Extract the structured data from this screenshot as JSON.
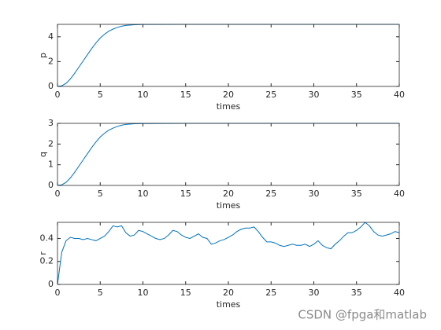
{
  "chart_data": [
    {
      "type": "line",
      "ylabel": "p",
      "xlabel": "times",
      "x": [
        0,
        0.5,
        1,
        1.5,
        2,
        2.5,
        3,
        3.5,
        4,
        4.5,
        5,
        5.5,
        6,
        6.5,
        7,
        7.5,
        8,
        9,
        10,
        15,
        20,
        25,
        30,
        35,
        40
      ],
      "series": [
        {
          "color": "#0072bd",
          "values": [
            0,
            0.05,
            0.25,
            0.6,
            1.05,
            1.55,
            2.05,
            2.55,
            3.05,
            3.5,
            3.9,
            4.2,
            4.45,
            4.62,
            4.75,
            4.85,
            4.91,
            4.97,
            4.99,
            5,
            5,
            5,
            5,
            5,
            5
          ]
        }
      ],
      "xlim": [
        0,
        40
      ],
      "xticks": [
        0,
        5,
        10,
        15,
        20,
        25,
        30,
        35,
        40
      ],
      "ylim": [
        0,
        5
      ],
      "yticks": [
        0,
        2,
        4
      ]
    },
    {
      "type": "line",
      "ylabel": "q",
      "xlabel": "times",
      "x": [
        0,
        0.5,
        1,
        1.5,
        2,
        2.5,
        3,
        3.5,
        4,
        4.5,
        5,
        5.5,
        6,
        6.5,
        7,
        7.5,
        8,
        9,
        10,
        15,
        20,
        25,
        30,
        35,
        40
      ],
      "series": [
        {
          "color": "#0072bd",
          "values": [
            0,
            0.03,
            0.15,
            0.36,
            0.63,
            0.93,
            1.23,
            1.53,
            1.83,
            2.1,
            2.34,
            2.52,
            2.67,
            2.77,
            2.85,
            2.91,
            2.95,
            2.98,
            2.99,
            3,
            3,
            3,
            3,
            3,
            3
          ]
        }
      ],
      "xlim": [
        0,
        40
      ],
      "xticks": [
        0,
        5,
        10,
        15,
        20,
        25,
        30,
        35,
        40
      ],
      "ylim": [
        0,
        3
      ],
      "yticks": [
        0,
        1,
        2,
        3
      ]
    },
    {
      "type": "line",
      "ylabel": "r",
      "xlabel": "times",
      "x": [
        0,
        0.5,
        1,
        1.5,
        2,
        2.5,
        3,
        3.5,
        4,
        4.5,
        5,
        5.5,
        6,
        6.5,
        7,
        7.5,
        8,
        8.5,
        9,
        9.5,
        10,
        10.5,
        11,
        11.5,
        12,
        12.5,
        13,
        13.5,
        14,
        14.5,
        15,
        15.5,
        16,
        16.5,
        17,
        17.5,
        18,
        18.5,
        19,
        19.5,
        20,
        20.5,
        21,
        21.5,
        22,
        22.5,
        23,
        23.5,
        24,
        24.5,
        25,
        25.5,
        26,
        26.5,
        27,
        27.5,
        28,
        28.5,
        29,
        29.5,
        30,
        30.5,
        31,
        31.5,
        32,
        32.5,
        33,
        33.5,
        34,
        34.5,
        35,
        35.5,
        36,
        36.5,
        37,
        37.5,
        38,
        38.5,
        39,
        39.5,
        40
      ],
      "series": [
        {
          "color": "#0072bd",
          "values": [
            0,
            0.28,
            0.38,
            0.41,
            0.4,
            0.4,
            0.39,
            0.4,
            0.39,
            0.38,
            0.4,
            0.42,
            0.46,
            0.51,
            0.5,
            0.51,
            0.45,
            0.42,
            0.43,
            0.47,
            0.46,
            0.44,
            0.42,
            0.4,
            0.39,
            0.4,
            0.43,
            0.47,
            0.46,
            0.43,
            0.41,
            0.4,
            0.42,
            0.44,
            0.41,
            0.4,
            0.35,
            0.36,
            0.38,
            0.39,
            0.41,
            0.43,
            0.46,
            0.48,
            0.49,
            0.49,
            0.5,
            0.46,
            0.41,
            0.37,
            0.37,
            0.36,
            0.34,
            0.33,
            0.34,
            0.35,
            0.34,
            0.34,
            0.35,
            0.33,
            0.35,
            0.38,
            0.34,
            0.32,
            0.31,
            0.35,
            0.38,
            0.42,
            0.45,
            0.45,
            0.47,
            0.5,
            0.54,
            0.51,
            0.46,
            0.43,
            0.42,
            0.43,
            0.44,
            0.46,
            0.45
          ]
        }
      ],
      "xlim": [
        0,
        40
      ],
      "xticks": [
        0,
        5,
        10,
        15,
        20,
        25,
        30,
        35,
        40
      ],
      "ylim": [
        0,
        0.54
      ],
      "yticks": [
        0,
        0.2,
        0.4
      ]
    }
  ],
  "watermark": "CSDN @fpga和matlab"
}
